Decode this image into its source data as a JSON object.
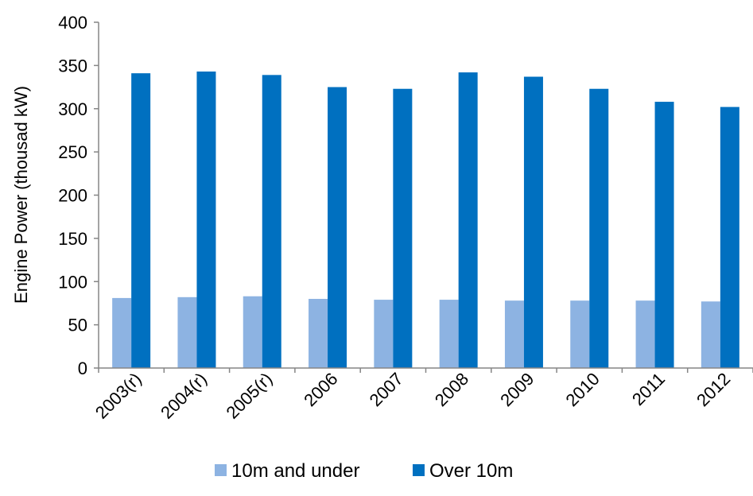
{
  "chart_data": {
    "type": "bar",
    "title": "",
    "xlabel": "",
    "ylabel": "Engine Power (thousad kW)",
    "ylim": [
      0,
      400
    ],
    "yticks": [
      0,
      50,
      100,
      150,
      200,
      250,
      300,
      350,
      400
    ],
    "grid": false,
    "legend_position": "bottom",
    "categories": [
      "2003(r)",
      "2004(r)",
      "2005(r)",
      "2006",
      "2007",
      "2008",
      "2009",
      "2010",
      "2011",
      "2012"
    ],
    "series": [
      {
        "name": "10m and under",
        "color": "#8db3e2",
        "values": [
          81,
          82,
          83,
          80,
          79,
          79,
          78,
          78,
          78,
          77
        ]
      },
      {
        "name": "Over 10m",
        "color": "#0070c0",
        "values": [
          341,
          343,
          339,
          325,
          323,
          342,
          337,
          323,
          308,
          302
        ]
      }
    ]
  }
}
